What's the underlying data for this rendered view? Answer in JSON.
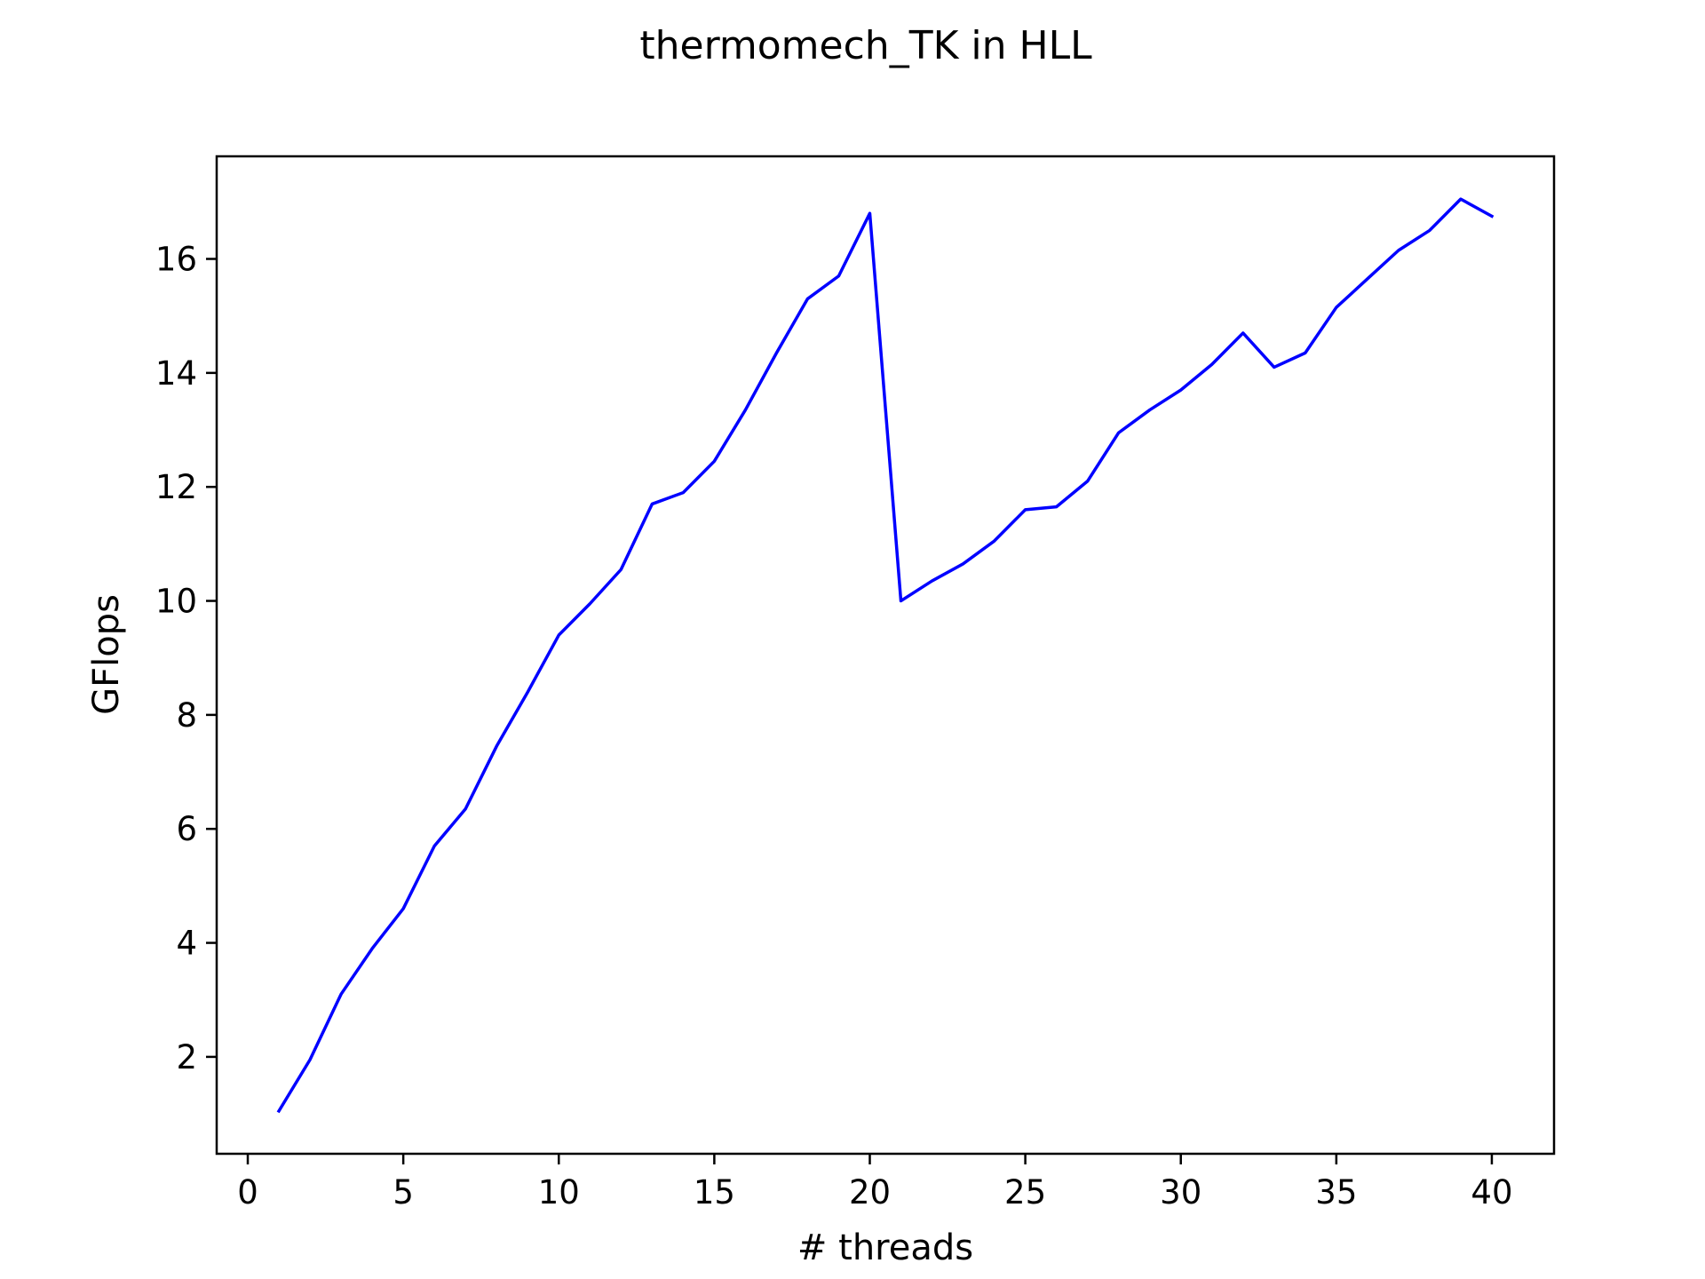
{
  "chart_data": {
    "type": "line",
    "title": "thermomech_TK in HLL",
    "xlabel": "# threads",
    "ylabel": "GFlops",
    "xlim": [
      -1,
      42
    ],
    "ylim": [
      0.3,
      17.8
    ],
    "grid": false,
    "x_ticks": [
      0,
      5,
      10,
      15,
      20,
      25,
      30,
      35,
      40
    ],
    "y_ticks": [
      2,
      4,
      6,
      8,
      10,
      12,
      14,
      16
    ],
    "colors": {
      "line": "#0000ff"
    },
    "series": [
      {
        "x": [
          1,
          2,
          3,
          4,
          5,
          6,
          7,
          8,
          9,
          10,
          11,
          12,
          13,
          14,
          15,
          16,
          17,
          18,
          19,
          20,
          21,
          22,
          23,
          24,
          25,
          26,
          27,
          28,
          29,
          30,
          31,
          32,
          33,
          34,
          35,
          36,
          37,
          38,
          39,
          40
        ],
        "values": [
          1.05,
          1.95,
          3.1,
          3.9,
          4.6,
          5.7,
          6.35,
          7.45,
          8.4,
          9.4,
          9.95,
          10.55,
          11.7,
          11.9,
          12.45,
          13.35,
          14.35,
          15.3,
          15.7,
          16.8,
          10.0,
          10.35,
          10.65,
          11.05,
          11.6,
          11.65,
          12.1,
          12.95,
          13.35,
          13.7,
          14.15,
          14.7,
          14.1,
          14.35,
          15.15,
          15.65,
          16.15,
          16.5,
          17.05,
          16.75
        ]
      }
    ]
  }
}
